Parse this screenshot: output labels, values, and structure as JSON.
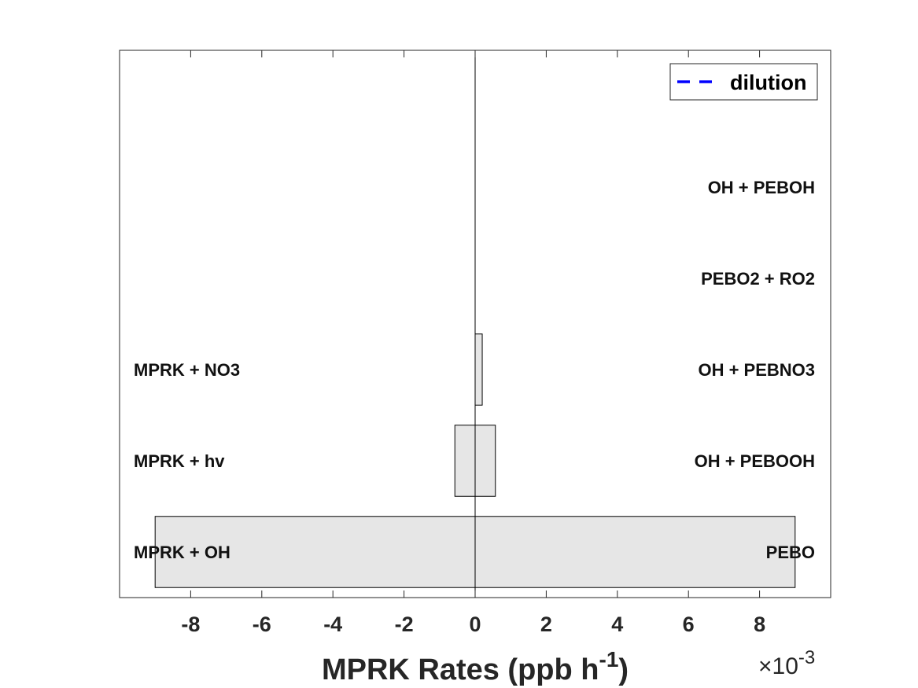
{
  "chart_data": {
    "type": "bar",
    "orientation": "horizontal",
    "xlabel": {
      "main": "MPRK Rates (ppb h",
      "superscript": "-1",
      "suffix": ")"
    },
    "x_multiplier": {
      "times": "×10",
      "exponent": "-3"
    },
    "xlim": [
      -0.01,
      0.01
    ],
    "xticks": [
      -0.008,
      -0.006,
      -0.004,
      -0.002,
      0,
      0.002,
      0.004,
      0.006,
      0.008
    ],
    "xtick_labels": [
      "-8",
      "-6",
      "-4",
      "-2",
      "0",
      "2",
      "4",
      "6",
      "8"
    ],
    "rows": [
      {
        "loss_label": "MPRK + OH",
        "production_label": "PEBO",
        "loss": -0.009,
        "production": 0.009
      },
      {
        "loss_label": "MPRK + hv",
        "production_label": "OH + PEBOOH",
        "loss": -0.00057,
        "production": 0.00057
      },
      {
        "loss_label": "MPRK + NO3",
        "production_label": "OH + PEBNO3",
        "loss": 0,
        "production": 0.0002
      },
      {
        "loss_label": "",
        "production_label": "PEBO2 + RO2",
        "loss": 0,
        "production": 0
      },
      {
        "loss_label": "",
        "production_label": "OH + PEBOH",
        "loss": 0,
        "production": 0
      },
      {
        "loss_label": "",
        "production_label": "",
        "loss": 0,
        "production": 0
      }
    ],
    "legend": {
      "entries": [
        {
          "name": "dilution",
          "style": "dashed",
          "color": "#0000ff"
        }
      ],
      "placement": "top-right"
    },
    "bar_color": "#e6e6e6",
    "bar_edge_color": "#000000",
    "grid": false
  }
}
